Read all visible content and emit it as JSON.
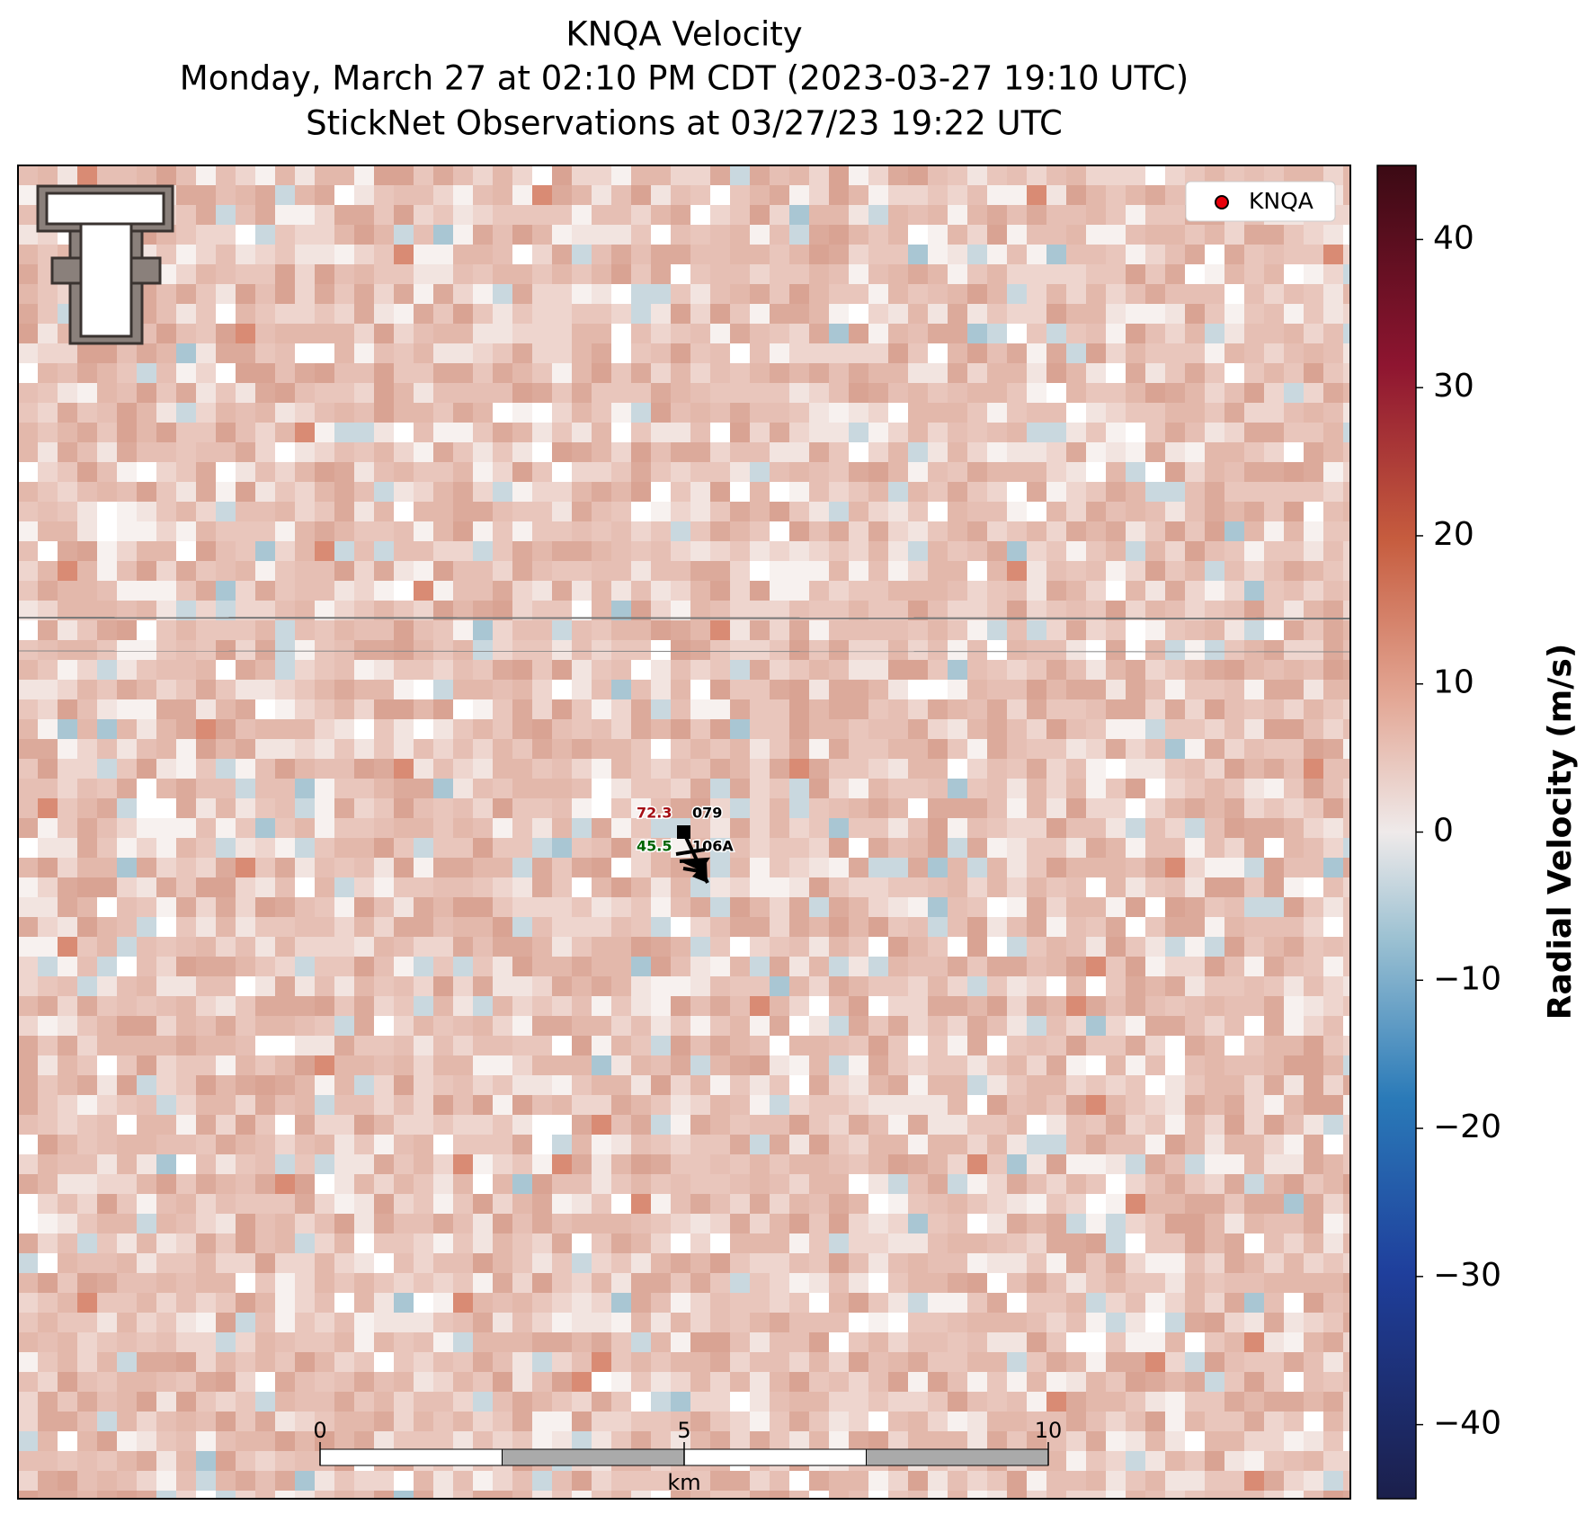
{
  "title": {
    "lines": [
      "KNQA Velocity",
      "Monday, March 27 at 02:10 PM CDT (2023-03-27 19:10 UTC)",
      "StickNet Observations at 03/27/23 19:22 UTC"
    ]
  },
  "colorbar": {
    "label": "Radial Velocity (m/s)",
    "lim": [
      -45,
      45
    ],
    "ticks": [
      40,
      30,
      20,
      10,
      0,
      {
        "value": -10,
        "label": "−10"
      },
      {
        "value": -20,
        "label": "−20"
      },
      {
        "value": -30,
        "label": "−30"
      },
      {
        "value": -40,
        "label": "−40"
      }
    ]
  },
  "legend": {
    "label": "KNQA",
    "color": "#e8000b"
  },
  "stations": [
    {
      "id": "079",
      "value": 72.3,
      "color": "#a50f15"
    },
    {
      "id": "106A",
      "value": 45.5,
      "color": "#006400"
    }
  ],
  "scale_bar": {
    "ticks": [
      0,
      5,
      10
    ],
    "unit": "km"
  }
}
